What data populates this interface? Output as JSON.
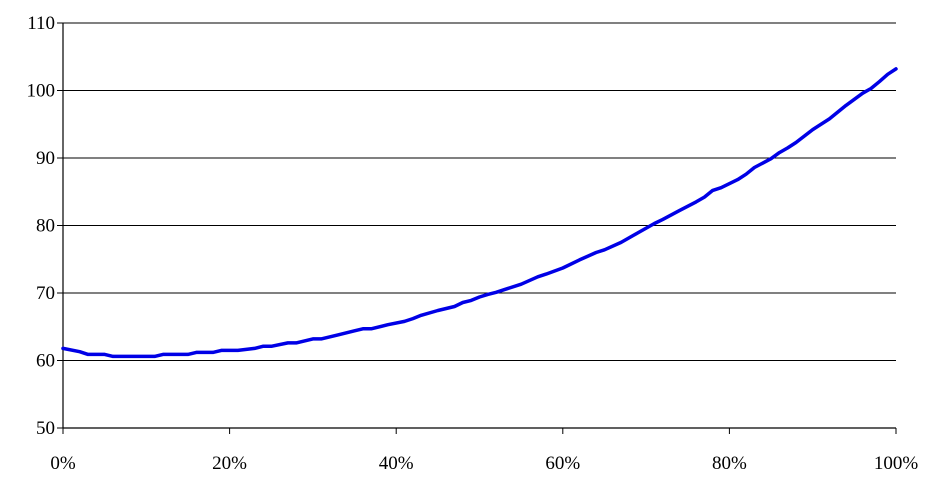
{
  "chart_data": {
    "type": "line",
    "title": "",
    "xlabel": "",
    "ylabel": "",
    "xlim": [
      0,
      100
    ],
    "ylim": [
      50,
      110
    ],
    "x_ticks": [
      0,
      20,
      40,
      60,
      80,
      100
    ],
    "x_tick_labels": [
      "0%",
      "20%",
      "40%",
      "60%",
      "80%",
      "100%"
    ],
    "y_ticks": [
      50,
      60,
      70,
      80,
      90,
      100,
      110
    ],
    "y_tick_labels": [
      "50",
      "60",
      "70",
      "80",
      "90",
      "100",
      "110"
    ],
    "grid": "horizontal",
    "legend": "none",
    "series": [
      {
        "color": "#0000E6",
        "x": [
          0,
          2,
          3,
          4,
          5,
          6,
          8,
          10,
          11,
          12,
          14,
          15,
          16,
          18,
          19,
          20,
          21,
          23,
          24,
          25,
          27,
          28,
          30,
          31,
          33,
          35,
          36,
          37,
          39,
          41,
          42,
          43,
          45,
          47,
          48,
          49,
          50,
          51,
          52,
          53,
          55,
          57,
          58,
          60,
          62,
          64,
          65,
          67,
          69,
          71,
          72,
          74,
          76,
          77,
          78,
          79,
          81,
          82,
          83,
          85,
          86,
          87,
          88,
          90,
          92,
          94,
          96,
          97,
          98,
          99,
          100
        ],
        "values": [
          61.8,
          61.3,
          60.9,
          60.9,
          60.9,
          60.6,
          60.6,
          60.6,
          60.6,
          60.9,
          60.9,
          60.9,
          61.2,
          61.2,
          61.5,
          61.5,
          61.5,
          61.8,
          62.1,
          62.1,
          62.6,
          62.6,
          63.2,
          63.2,
          63.8,
          64.4,
          64.7,
          64.7,
          65.3,
          65.8,
          66.2,
          66.7,
          67.4,
          68.0,
          68.6,
          68.9,
          69.4,
          69.8,
          70.1,
          70.5,
          71.3,
          72.4,
          72.8,
          73.7,
          74.9,
          76.0,
          76.4,
          77.5,
          78.9,
          80.3,
          80.9,
          82.2,
          83.5,
          84.2,
          85.2,
          85.6,
          86.8,
          87.6,
          88.6,
          89.9,
          90.8,
          91.5,
          92.3,
          94.2,
          95.8,
          97.8,
          99.6,
          100.3,
          101.3,
          102.4,
          103.2
        ]
      }
    ]
  }
}
